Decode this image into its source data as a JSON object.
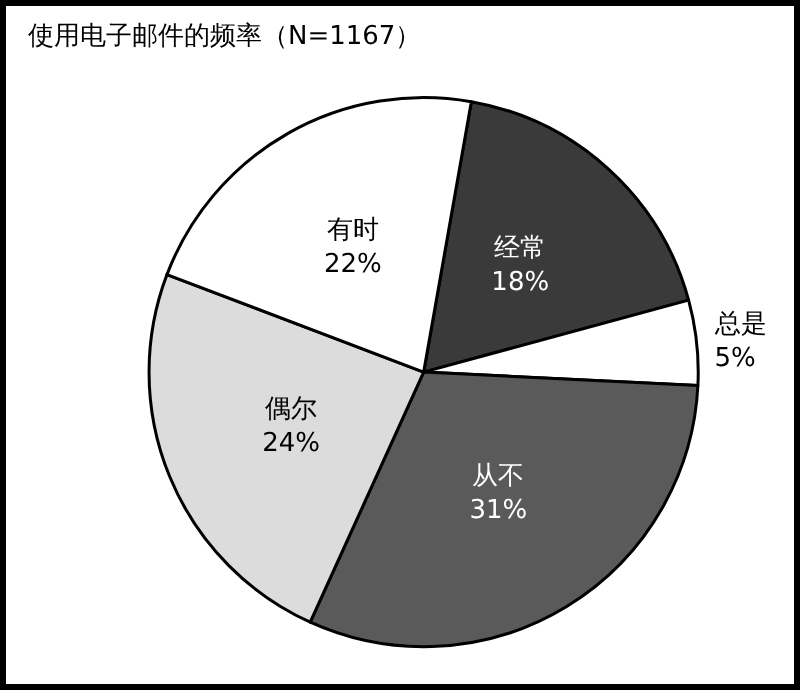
{
  "chart_data": {
    "type": "pie",
    "title": "使用电子邮件的频率（N=1167）",
    "categories": [
      "经常",
      "总是",
      "从不",
      "偶尔",
      "有时"
    ],
    "values": [
      18,
      5,
      31,
      24,
      22
    ],
    "value_labels": [
      "18%",
      "5%",
      "31%",
      "24%",
      "22%"
    ],
    "colors": [
      "#3a3a3a",
      "#ffffff",
      "#5a5a5a",
      "#dcdcdc",
      "#ffffff"
    ],
    "legend": false
  }
}
